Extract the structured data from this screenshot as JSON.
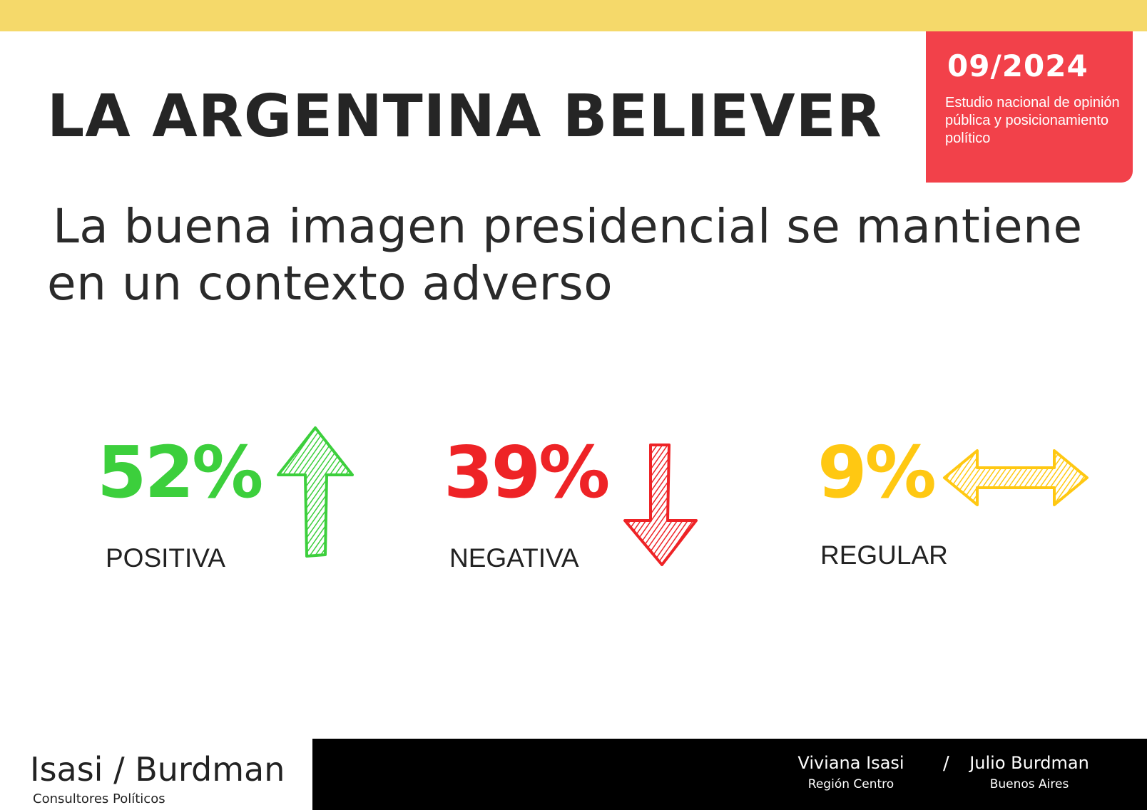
{
  "header": {
    "title": "LA ARGENTINA BELIEVER",
    "date": "09/2024",
    "description": "Estudio nacional de opinión pública y posicionamiento político"
  },
  "subtitle": {
    "line1": "La buena imagen presidencial se mantiene",
    "line2": "en un contexto adverso"
  },
  "stats": [
    {
      "value": "52%",
      "label": "POSITIVA",
      "color": "#3ccf3c",
      "icon": "arrow-up-icon"
    },
    {
      "value": "39%",
      "label": "NEGATIVA",
      "color": "#ee2326",
      "icon": "arrow-down-icon"
    },
    {
      "value": "9%",
      "label": "REGULAR",
      "color": "#ffc812",
      "icon": "arrow-left-right-icon"
    }
  ],
  "footer": {
    "logo": "Isasi / Burdman",
    "logo_sub": "Consultores Políticos",
    "person1_name": "Viviana Isasi",
    "person1_location": "Región Centro",
    "separator": "/",
    "person2_name": "Julio Burdman",
    "person2_location": "Buenos Aires"
  },
  "colors": {
    "accent_yellow": "#f5d96a",
    "accent_red": "#f2414a"
  }
}
